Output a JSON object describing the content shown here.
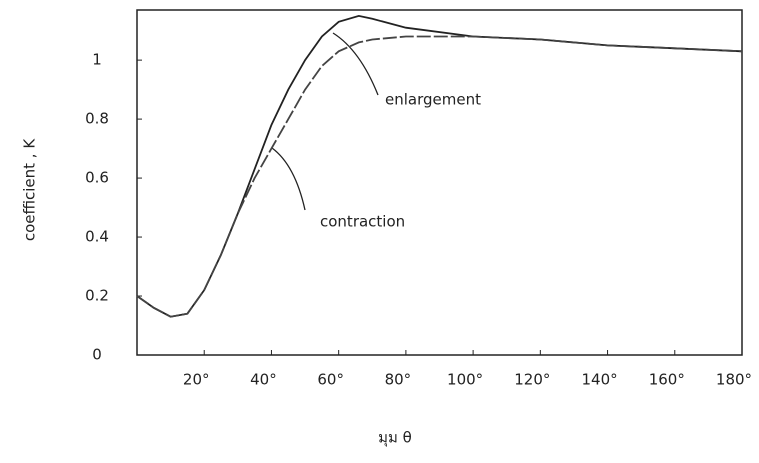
{
  "chart_data": {
    "type": "line",
    "y_label": "coefficient , K",
    "x_label": "มุม θ",
    "x": [
      0,
      5,
      10,
      15,
      20,
      25,
      30,
      35,
      40,
      45,
      50,
      55,
      60,
      66,
      70,
      80,
      100,
      120,
      140,
      160,
      180
    ],
    "series": [
      {
        "name": "enlargement",
        "color": "#222222",
        "values": [
          0.2,
          0.16,
          0.13,
          0.14,
          0.22,
          0.34,
          0.48,
          0.63,
          0.78,
          0.9,
          1.0,
          1.08,
          1.13,
          1.15,
          1.14,
          1.11,
          1.08,
          1.07,
          1.05,
          1.04,
          1.03
        ]
      },
      {
        "name": "contraction",
        "color": "#444444",
        "values": [
          0.2,
          0.16,
          0.13,
          0.14,
          0.22,
          0.34,
          0.48,
          0.6,
          0.7,
          0.8,
          0.9,
          0.98,
          1.03,
          1.06,
          1.07,
          1.08,
          1.08,
          1.07,
          1.05,
          1.04,
          1.03
        ]
      }
    ],
    "xlim": [
      0,
      180
    ],
    "xticks": [
      {
        "value": 20,
        "label": "20°"
      },
      {
        "value": 40,
        "label": "40°"
      },
      {
        "value": 60,
        "label": "60°"
      },
      {
        "value": 80,
        "label": "80°"
      },
      {
        "value": 100,
        "label": "100°"
      },
      {
        "value": 120,
        "label": "120°"
      },
      {
        "value": 140,
        "label": "140°"
      },
      {
        "value": 160,
        "label": "160°"
      },
      {
        "value": 180,
        "label": "180°"
      }
    ],
    "ylim": [
      0,
      1.17
    ],
    "yticks": [
      0,
      0.2,
      0.4,
      0.6,
      0.8,
      1.0
    ]
  }
}
